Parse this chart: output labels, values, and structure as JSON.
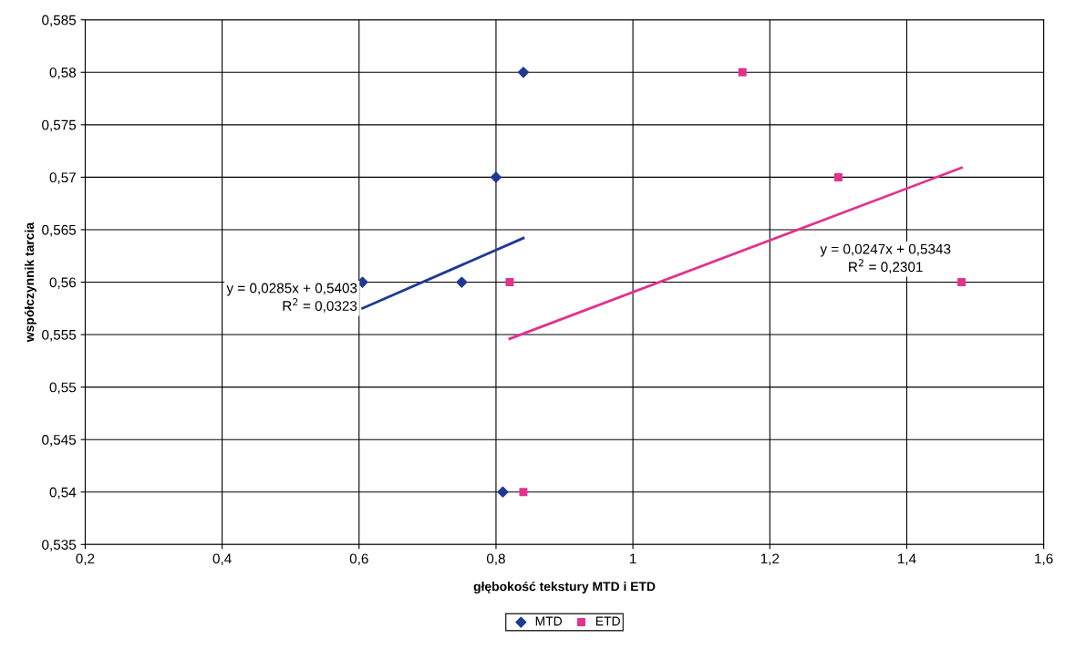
{
  "chart_data": {
    "type": "scatter",
    "xlabel": "głębokość tekstury MTD i ETD",
    "ylabel": "współczynnik tarcia",
    "series": [
      {
        "name": "MTD",
        "color": "#1f3a93",
        "marker": "diamond",
        "x": [
          0.605,
          0.75,
          0.8,
          0.84,
          0.81
        ],
        "values": [
          0.56,
          0.56,
          0.57,
          0.58,
          0.54
        ]
      },
      {
        "name": "ETD",
        "color": "#e0338f",
        "marker": "square",
        "x": [
          0.82,
          0.84,
          1.16,
          1.3,
          1.48
        ],
        "values": [
          0.56,
          0.54,
          0.58,
          0.57,
          0.56
        ]
      },
      {
        "type": "line",
        "color": "#1f3a93",
        "marker": "none",
        "x": [
          0.605,
          0.84
        ],
        "values": [
          0.5575,
          0.5642
        ]
      },
      {
        "type": "line",
        "color": "#e0338f",
        "marker": "none",
        "x": [
          0.82,
          1.48
        ],
        "values": [
          0.5546,
          0.5709
        ]
      }
    ],
    "annotations": [
      "y = 0,0285x + 0,5403\nR$^{2}$ = 0,0323",
      "y = 0,0247x + 0,5343\nR$^{2}$ = 0,2301"
    ],
    "xlim": [
      0.2,
      1.6
    ],
    "ylim": [
      0.535,
      0.585
    ],
    "xticks": [
      {
        "value": 0.2,
        "label": "0,2"
      },
      {
        "value": 0.4,
        "label": "0,4"
      },
      {
        "value": 0.6,
        "label": "0,6"
      },
      {
        "value": 0.8,
        "label": "0,8"
      },
      1,
      {
        "value": 1.2,
        "label": "1,2"
      },
      {
        "value": 1.4,
        "label": "1,4"
      },
      {
        "value": 1.6,
        "label": "1,6"
      }
    ],
    "yticks": [
      {
        "value": 0.535,
        "label": "0,535"
      },
      {
        "value": 0.54,
        "label": "0,54"
      },
      {
        "value": 0.545,
        "label": "0,545"
      },
      {
        "value": 0.55,
        "label": "0,55"
      },
      {
        "value": 0.555,
        "label": "0,555"
      },
      {
        "value": 0.56,
        "label": "0,56"
      },
      {
        "value": 0.565,
        "label": "0,565"
      },
      {
        "value": 0.57,
        "label": "0,57"
      },
      {
        "value": 0.575,
        "label": "0,575"
      },
      {
        "value": 0.58,
        "label": "0,58"
      },
      {
        "value": 0.585,
        "label": "0,585"
      }
    ],
    "grid": true,
    "legend": "bottom"
  }
}
